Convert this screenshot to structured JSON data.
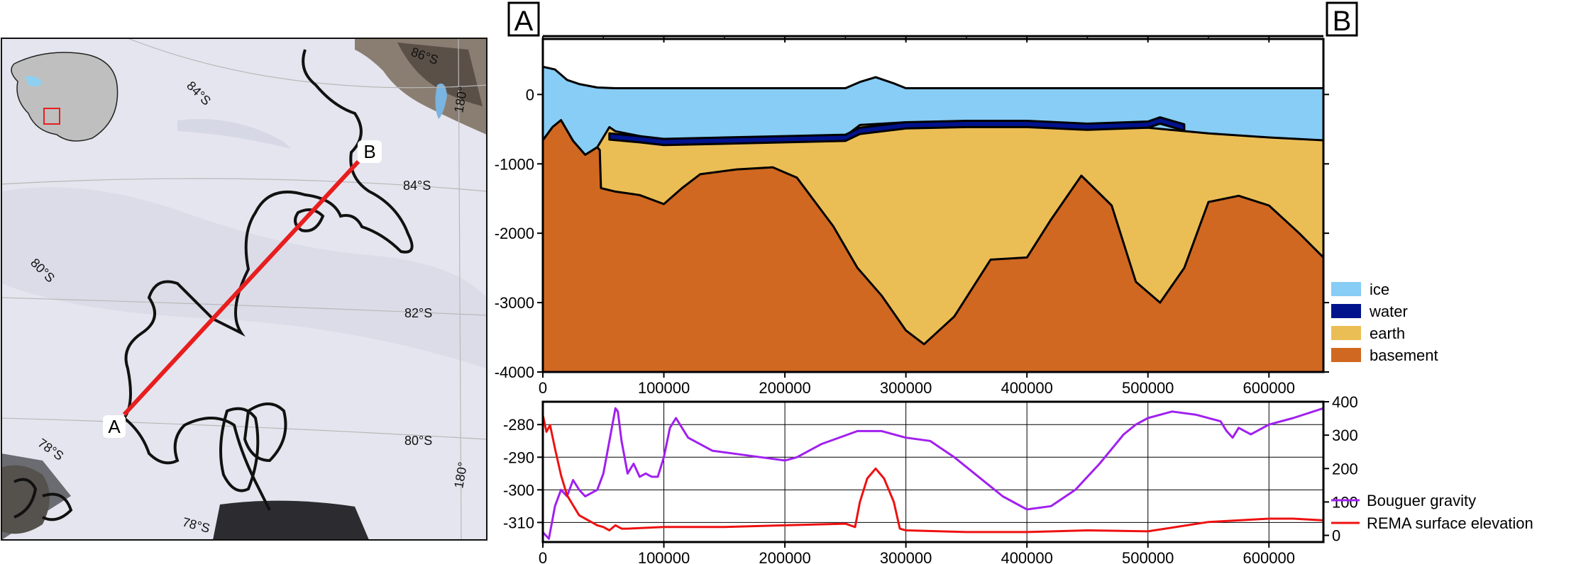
{
  "labels": {
    "start": "A",
    "end": "B"
  },
  "map": {
    "graticule_labels": [
      "84°S",
      "86°S",
      "180°",
      "84°S",
      "82°S",
      "80°S",
      "80°S",
      "78°S",
      "78°S",
      "180°"
    ],
    "line_color": "#e81e1e"
  },
  "chart_data": [
    {
      "type": "area",
      "name": "cross-section",
      "xlim": [
        0,
        645000
      ],
      "ylim": [
        -4000,
        800
      ],
      "x_ticks": [
        "0",
        "100000",
        "200000",
        "300000",
        "400000",
        "500000",
        "600000"
      ],
      "y_ticks": [
        "0",
        "-1000",
        "-2000",
        "-3000",
        "-4000"
      ],
      "legend_position": "right",
      "series": [
        {
          "name": "ice",
          "color": "#87cdf5",
          "x": [
            0,
            10000,
            20000,
            30000,
            45000,
            60000,
            100000,
            200000,
            250000,
            262000,
            275000,
            290000,
            300000,
            400000,
            500000,
            600000,
            645000
          ],
          "y": [
            400,
            360,
            210,
            150,
            100,
            90,
            90,
            90,
            90,
            180,
            250,
            160,
            90,
            90,
            90,
            90,
            90
          ]
        },
        {
          "name": "water",
          "color": "#00128c",
          "x": [
            55000,
            80000,
            100000,
            150000,
            200000,
            250000,
            262000,
            300000,
            350000,
            400000,
            450000,
            500000,
            510000,
            530000
          ],
          "y": [
            -560,
            -600,
            -640,
            -620,
            -600,
            -580,
            -480,
            -400,
            -380,
            -380,
            -420,
            -390,
            -330,
            -430
          ]
        },
        {
          "name": "earth",
          "color": "#ebbe55",
          "x": [
            0,
            8000,
            15000,
            25000,
            35000,
            45000,
            55000,
            60000,
            100000,
            150000,
            200000,
            250000,
            262000,
            300000,
            400000,
            500000,
            550000,
            600000,
            645000
          ],
          "y": [
            -660,
            -470,
            -370,
            -670,
            -870,
            -760,
            -470,
            -530,
            -670,
            -650,
            -640,
            -600,
            -440,
            -400,
            -430,
            -480,
            -560,
            -620,
            -660
          ]
        },
        {
          "name": "basement",
          "color": "#d06821",
          "x": [
            0,
            8000,
            15000,
            25000,
            35000,
            45000,
            47000,
            48000,
            60000,
            80000,
            100000,
            115000,
            130000,
            160000,
            190000,
            210000,
            240000,
            260000,
            280000,
            300000,
            315000,
            340000,
            370000,
            400000,
            420000,
            445000,
            470000,
            490000,
            510000,
            530000,
            550000,
            575000,
            600000,
            625000,
            645000
          ],
          "y": [
            -660,
            -470,
            -370,
            -670,
            -870,
            -760,
            -800,
            -1350,
            -1400,
            -1450,
            -1580,
            -1350,
            -1150,
            -1080,
            -1050,
            -1200,
            -1900,
            -2500,
            -2900,
            -3400,
            -3600,
            -3200,
            -2380,
            -2350,
            -1800,
            -1170,
            -1600,
            -2700,
            -3000,
            -2500,
            -1550,
            -1460,
            -1600,
            -2000,
            -2350
          ]
        }
      ]
    },
    {
      "type": "line",
      "name": "profiles",
      "xlim": [
        0,
        645000
      ],
      "ylim_left": [
        -316,
        -273
      ],
      "ylim_right": [
        -20,
        400
      ],
      "x_ticks": [
        "0",
        "100000",
        "200000",
        "300000",
        "400000",
        "500000",
        "600000"
      ],
      "y_ticks_left": [
        "-280",
        "-290",
        "-300",
        "-310"
      ],
      "y_ticks_right": [
        "400",
        "300",
        "200",
        "100",
        "0"
      ],
      "grid": true,
      "legend_position": "bottom-right",
      "series": [
        {
          "name": "Bouguer gravity",
          "color": "#a020f0",
          "axis": "left",
          "x": [
            0,
            5000,
            10000,
            15000,
            20000,
            25000,
            30000,
            35000,
            40000,
            45000,
            50000,
            55000,
            60000,
            62000,
            65000,
            70000,
            75000,
            80000,
            85000,
            90000,
            95000,
            100000,
            105000,
            110000,
            115000,
            120000,
            140000,
            160000,
            180000,
            200000,
            210000,
            230000,
            260000,
            280000,
            300000,
            320000,
            340000,
            360000,
            380000,
            400000,
            420000,
            440000,
            460000,
            480000,
            490000,
            500000,
            520000,
            540000,
            560000,
            565000,
            570000,
            575000,
            580000,
            585000,
            590000,
            600000,
            620000,
            645000
          ],
          "y": [
            -313,
            -315,
            -305,
            -300,
            -302,
            -297,
            -300,
            -302,
            -301,
            -300,
            -295,
            -285,
            -275,
            -276,
            -285,
            -295,
            -292,
            -296,
            -295,
            -296,
            -296,
            -290,
            -281,
            -278,
            -281,
            -284,
            -288,
            -289,
            -290,
            -291,
            -290,
            -286,
            -282,
            -282,
            -284,
            -285,
            -290,
            -296,
            -302,
            -306,
            -305,
            -300,
            -292,
            -283,
            -280,
            -278,
            -276,
            -277,
            -279,
            -282,
            -284,
            -281,
            -282,
            -283,
            -282,
            -280,
            -278,
            -275
          ]
        },
        {
          "name": "REMA surface elevation",
          "color": "#ee1111",
          "axis": "right",
          "x": [
            0,
            3000,
            6000,
            10000,
            15000,
            20000,
            25000,
            30000,
            35000,
            40000,
            45000,
            50000,
            55000,
            60000,
            65000,
            70000,
            100000,
            150000,
            200000,
            250000,
            258000,
            262000,
            268000,
            275000,
            282000,
            290000,
            295000,
            300000,
            350000,
            400000,
            450000,
            500000,
            550000,
            600000,
            620000,
            645000
          ],
          "y": [
            360,
            310,
            330,
            260,
            180,
            120,
            90,
            60,
            50,
            40,
            30,
            25,
            15,
            30,
            20,
            20,
            25,
            25,
            30,
            35,
            25,
            100,
            170,
            200,
            170,
            100,
            20,
            15,
            10,
            10,
            15,
            12,
            40,
            50,
            50,
            45
          ]
        }
      ]
    }
  ]
}
